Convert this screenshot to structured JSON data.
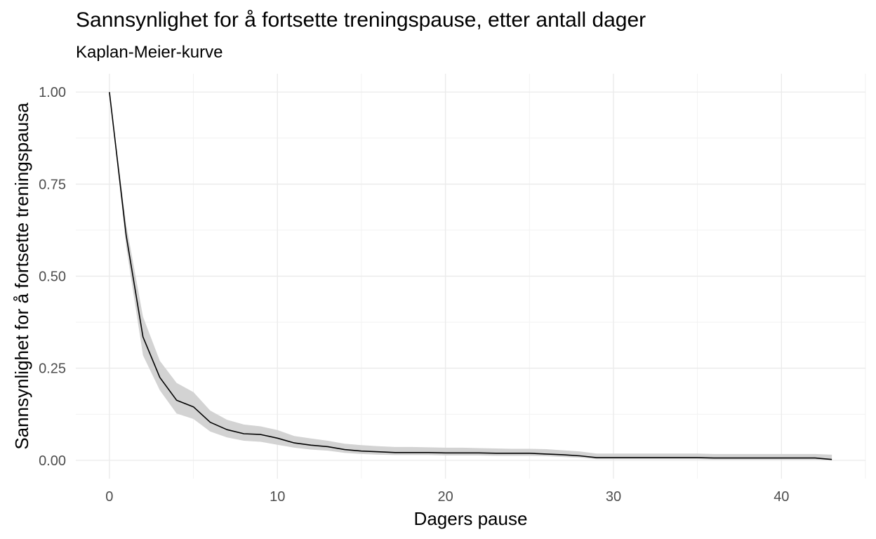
{
  "chart_data": {
    "type": "line",
    "title": "Sannsynlighet for å fortsette treningspause, etter antall dager",
    "subtitle": "Kaplan-Meier-kurve",
    "xlabel": "Dagers pause",
    "ylabel": "Sannsynlighet for å fortsette treningspausa",
    "xlim": [
      -2,
      45
    ],
    "ylim": [
      -0.05,
      1.05
    ],
    "x_ticks": [
      0,
      10,
      20,
      30,
      40
    ],
    "x_tick_labels": [
      "0",
      "10",
      "20",
      "30",
      "40"
    ],
    "y_ticks": [
      0,
      0.25,
      0.5,
      0.75,
      1.0
    ],
    "y_tick_labels": [
      "0.00",
      "0.25",
      "0.50",
      "0.75",
      "1.00"
    ],
    "grid": true,
    "series": [
      {
        "x": [
          0,
          1,
          2,
          3,
          4,
          5,
          6,
          7,
          8,
          9,
          10,
          11,
          12,
          13,
          14,
          15,
          16,
          17,
          18,
          19,
          20,
          21,
          22,
          23,
          24,
          25,
          26,
          27,
          28,
          29,
          30,
          31,
          32,
          33,
          34,
          35,
          36,
          37,
          38,
          39,
          40,
          41,
          42,
          43
        ],
        "y": [
          1.0,
          0.61,
          0.335,
          0.225,
          0.163,
          0.145,
          0.103,
          0.083,
          0.072,
          0.07,
          0.06,
          0.047,
          0.041,
          0.037,
          0.029,
          0.025,
          0.023,
          0.021,
          0.021,
          0.021,
          0.02,
          0.02,
          0.02,
          0.019,
          0.019,
          0.019,
          0.017,
          0.015,
          0.012,
          0.007,
          0.007,
          0.007,
          0.007,
          0.007,
          0.007,
          0.007,
          0.006,
          0.006,
          0.006,
          0.006,
          0.006,
          0.006,
          0.006,
          0.002
        ],
        "lower": [
          1.0,
          0.58,
          0.285,
          0.19,
          0.127,
          0.112,
          0.078,
          0.062,
          0.053,
          0.05,
          0.042,
          0.034,
          0.029,
          0.026,
          0.02,
          0.017,
          0.015,
          0.014,
          0.014,
          0.014,
          0.013,
          0.013,
          0.013,
          0.012,
          0.012,
          0.012,
          0.011,
          0.009,
          0.007,
          0.003,
          0.003,
          0.003,
          0.003,
          0.003,
          0.003,
          0.003,
          0.002,
          0.002,
          0.002,
          0.002,
          0.002,
          0.002,
          0.002,
          0.0
        ],
        "upper": [
          1.0,
          0.64,
          0.39,
          0.27,
          0.21,
          0.185,
          0.135,
          0.11,
          0.097,
          0.092,
          0.082,
          0.066,
          0.059,
          0.053,
          0.045,
          0.041,
          0.038,
          0.036,
          0.036,
          0.035,
          0.034,
          0.034,
          0.033,
          0.032,
          0.031,
          0.031,
          0.03,
          0.027,
          0.024,
          0.018,
          0.018,
          0.018,
          0.018,
          0.018,
          0.018,
          0.018,
          0.017,
          0.017,
          0.017,
          0.017,
          0.017,
          0.017,
          0.017,
          0.015
        ]
      }
    ],
    "colors": {
      "line": "#000000",
      "ribbon": "#d3d3d3",
      "grid_major": "#ebebeb",
      "grid_minor": "#f2f2f2",
      "tick_text": "#4d4d4d"
    }
  }
}
